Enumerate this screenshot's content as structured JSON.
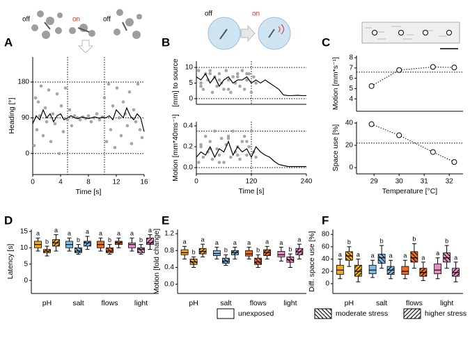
{
  "panels": [
    "A",
    "B",
    "C",
    "D",
    "E",
    "F"
  ],
  "icon_labels": [
    "off",
    "on",
    "off",
    "off",
    "on"
  ],
  "legend": [
    {
      "name": "unexposed",
      "hatch": "none"
    },
    {
      "name": "moderate stress",
      "hatch": "back"
    },
    {
      "name": "higher stress",
      "hatch": "forward"
    }
  ],
  "chart_data": [
    {
      "type": "scatter",
      "ylabel": "Heading [°]",
      "xlabel": "Time [s]",
      "xlim": [
        0,
        16
      ],
      "xticks": [
        0,
        4,
        8,
        12,
        16
      ],
      "ylim": [
        -53,
        243
      ],
      "yticks": [
        0,
        90,
        180
      ],
      "hlines": [
        0,
        90,
        180
      ],
      "vlines": [
        5,
        10.3
      ],
      "series": [
        {
          "type": "scatter",
          "color": "#a6a6a6",
          "x": [
            0.2,
            0.4,
            0.6,
            0.8,
            1.0,
            1.2,
            1.5,
            1.8,
            2.0,
            2.3,
            2.6,
            2.9,
            3.2,
            3.5,
            3.8,
            4.1,
            4.4,
            4.7,
            5.0,
            5.3,
            5.6,
            6.0,
            6.4,
            6.8,
            7.2,
            7.6,
            8.0,
            8.4,
            8.8,
            9.2,
            9.6,
            10.0,
            10.3,
            10.6,
            10.9,
            11.2,
            11.5,
            11.8,
            12.1,
            12.4,
            12.7,
            13.0,
            13.3,
            13.6,
            13.9,
            14.2,
            14.5,
            14.8,
            15.1,
            15.4,
            15.7
          ],
          "values": [
            20,
            140,
            60,
            130,
            95,
            170,
            45,
            115,
            80,
            160,
            30,
            100,
            75,
            150,
            0,
            120,
            55,
            165,
            85,
            110,
            70,
            95,
            90,
            85,
            92,
            88,
            95,
            80,
            90,
            100,
            85,
            92,
            140,
            30,
            175,
            60,
            120,
            15,
            165,
            90,
            45,
            130,
            100,
            70,
            155,
            25,
            110,
            80,
            175,
            60,
            40
          ]
        },
        {
          "type": "line",
          "color": "#000000",
          "x": [
            0,
            0.5,
            1,
            1.5,
            2,
            2.5,
            3,
            3.5,
            4,
            4.5,
            5,
            5.5,
            6,
            6.5,
            7,
            7.5,
            8,
            8.5,
            9,
            9.5,
            10,
            10.5,
            11,
            11.5,
            12,
            12.5,
            13,
            13.5,
            14,
            14.5,
            15,
            15.5,
            16
          ],
          "values": [
            75,
            95,
            85,
            110,
            90,
            100,
            80,
            95,
            100,
            85,
            90,
            95,
            90,
            88,
            92,
            90,
            88,
            90,
            92,
            89,
            91,
            90,
            95,
            85,
            110,
            100,
            90,
            115,
            95,
            85,
            100,
            90,
            55
          ]
        }
      ]
    },
    {
      "type": "scatter",
      "ylabel": "[mm] to source",
      "xlim": [
        0,
        240
      ],
      "ylim": [
        -1.8,
        12
      ],
      "yticks": [
        0,
        5,
        10
      ],
      "hlines": [
        0,
        10
      ],
      "vlines": [
        120
      ],
      "series": [
        {
          "type": "scatter",
          "color": "#a6a6a6",
          "x": [
            5,
            10,
            15,
            20,
            25,
            30,
            35,
            40,
            45,
            50,
            55,
            60,
            65,
            70,
            75,
            80,
            85,
            90,
            95,
            100,
            105,
            110,
            115,
            120,
            125,
            130,
            10,
            30,
            50,
            70,
            90,
            110
          ],
          "values": [
            9,
            5,
            3,
            8,
            6,
            9,
            2,
            7,
            4,
            8,
            5,
            3,
            9,
            6,
            2,
            7,
            5,
            8,
            4,
            9,
            3,
            6,
            8,
            2,
            7,
            5,
            4,
            8,
            6,
            3,
            7,
            8
          ]
        },
        {
          "type": "line",
          "color": "#000000",
          "x": [
            0,
            10,
            20,
            30,
            40,
            50,
            60,
            70,
            80,
            90,
            100,
            110,
            120,
            130,
            140,
            150,
            160,
            170,
            180,
            190,
            200,
            210,
            220,
            230,
            240
          ],
          "values": [
            7,
            6,
            8,
            5,
            7,
            4,
            6,
            7,
            5,
            6,
            6,
            7,
            5,
            6,
            5,
            6,
            5,
            4,
            3,
            1.2,
            1,
            1,
            1.1,
            1,
            1
          ]
        }
      ]
    },
    {
      "type": "scatter",
      "ylabel": "Motion [mm*40ms⁻¹]",
      "xlabel": "Time [s]",
      "xlim": [
        0,
        240
      ],
      "xticks": [
        0,
        120,
        240
      ],
      "ylim": [
        -0.06,
        0.44
      ],
      "yticks": [
        {
          "value": 0,
          "label": "0.0"
        },
        0.2,
        0.4
      ],
      "hlines": [
        0,
        0.35
      ],
      "vlines": [
        120
      ],
      "series": [
        {
          "type": "scatter",
          "color": "#a6a6a6",
          "x": [
            5,
            10,
            15,
            20,
            25,
            30,
            35,
            40,
            45,
            50,
            55,
            60,
            65,
            70,
            75,
            80,
            85,
            90,
            95,
            100,
            105,
            110,
            115,
            120,
            125,
            130,
            10,
            30,
            50,
            70,
            90,
            110
          ],
          "values": [
            0.05,
            0.2,
            0.1,
            0.3,
            0.15,
            0.25,
            0.08,
            0.35,
            0.18,
            0.12,
            0.28,
            0.05,
            0.22,
            0.3,
            0.1,
            0.35,
            0.15,
            0.2,
            0.08,
            0.25,
            0.3,
            0.12,
            0.2,
            0.35,
            0.15,
            0.1,
            0.22,
            0.18,
            0.05,
            0.28,
            0.12,
            0.25
          ]
        },
        {
          "type": "line",
          "color": "#000000",
          "x": [
            0,
            10,
            20,
            30,
            40,
            50,
            60,
            70,
            80,
            90,
            100,
            110,
            120,
            130,
            140,
            150,
            160,
            170,
            180,
            190,
            200,
            210,
            220,
            230,
            240
          ],
          "values": [
            0.1,
            0.15,
            0.12,
            0.2,
            0.1,
            0.18,
            0.15,
            0.25,
            0.12,
            0.2,
            0.15,
            0.18,
            0.1,
            0.2,
            0.15,
            0.12,
            0.1,
            0.06,
            0.03,
            0.02,
            0.01,
            0.01,
            0.01,
            0.01,
            0.01
          ]
        }
      ]
    },
    {
      "type": "line",
      "ylabel": "Motion [mm*s⁻¹]",
      "xlim": [
        28.3,
        32.55
      ],
      "ylim": [
        2.8,
        8.2
      ],
      "yticks": [
        4,
        5,
        6,
        7,
        8
      ],
      "hlines": [
        6.6
      ],
      "series": [
        {
          "type": "line",
          "color": "#000000",
          "dashed": true,
          "markers": true,
          "x": [
            28.9,
            30,
            31.35,
            32.2
          ],
          "values": [
            5.25,
            6.8,
            7.1,
            7.05
          ]
        }
      ]
    },
    {
      "type": "line",
      "ylabel": "Space use [%]",
      "xlabel": "Temperature [°C]",
      "xlim": [
        28.3,
        32.55
      ],
      "xticks": [
        29,
        30,
        31,
        32
      ],
      "ylim": [
        -5.6,
        41.2
      ],
      "yticks": [
        0,
        20,
        40
      ],
      "hlines": [
        22
      ],
      "series": [
        {
          "type": "line",
          "color": "#000000",
          "dashed": true,
          "markers": true,
          "x": [
            28.9,
            30,
            31.35,
            32.2
          ],
          "values": [
            39,
            29,
            14,
            5
          ]
        }
      ]
    },
    {
      "type": "box",
      "ylabel": "Latency [s]",
      "categories": [
        "pH",
        "salt",
        "flows",
        "light"
      ],
      "colors": [
        "#f2a81d",
        "#78bde6",
        "#f26b22",
        "#ea8cc4"
      ],
      "ylim": [
        -4,
        15.6
      ],
      "yticks": [
        0,
        5,
        10,
        15
      ],
      "series": [
        {
          "boxes": [
            [
              9,
              10,
              11,
              12,
              13
            ],
            [
              9,
              10,
              11,
              12,
              13
            ],
            [
              9,
              10,
              11,
              12,
              13
            ],
            [
              9,
              10,
              11,
              11.5,
              13
            ]
          ],
          "letters": [
            "a",
            "a",
            "a",
            "a"
          ]
        },
        {
          "boxes": [
            [
              7.5,
              8.5,
              9,
              9.5,
              10.5
            ],
            [
              8,
              8.5,
              9,
              10,
              11
            ],
            [
              8,
              8.5,
              9,
              10,
              11
            ],
            [
              8,
              8.5,
              9.5,
              10,
              11
            ]
          ],
          "letters": [
            "b",
            "b",
            "b",
            "b"
          ]
        },
        {
          "boxes": [
            [
              9,
              10.5,
              11.5,
              12.5,
              14
            ],
            [
              9.5,
              10.5,
              11.5,
              12,
              13.5
            ],
            [
              10,
              11,
              11.5,
              12,
              13
            ],
            [
              9.5,
              11,
              11.5,
              13,
              14
            ]
          ],
          "letters": [
            "a",
            "a",
            "a",
            "a"
          ]
        }
      ]
    },
    {
      "type": "box",
      "ylabel": "Motion [fold change]",
      "categories": [
        "pH",
        "salt",
        "flows",
        "light"
      ],
      "colors": [
        "#f2a81d",
        "#78bde6",
        "#f26b22",
        "#ea8cc4"
      ],
      "ylim": [
        -0.22,
        1.3
      ],
      "yticks": [
        {
          "value": 0,
          "label": "0.0"
        },
        0.4,
        0.8,
        1.2
      ],
      "series": [
        {
          "boxes": [
            [
              0.6,
              0.7,
              0.75,
              0.82,
              0.9
            ],
            [
              0.6,
              0.68,
              0.73,
              0.8,
              0.88
            ],
            [
              0.6,
              0.67,
              0.72,
              0.8,
              0.88
            ],
            [
              0.55,
              0.65,
              0.7,
              0.78,
              0.88
            ]
          ],
          "letters": [
            "a",
            "a",
            "a",
            "a"
          ]
        },
        {
          "boxes": [
            [
              0.4,
              0.47,
              0.53,
              0.6,
              0.65
            ],
            [
              0.45,
              0.5,
              0.55,
              0.62,
              0.7
            ],
            [
              0.4,
              0.47,
              0.53,
              0.62,
              0.7
            ],
            [
              0.4,
              0.52,
              0.58,
              0.65,
              0.72
            ]
          ],
          "letters": [
            "b",
            "b",
            "b",
            "b"
          ]
        },
        {
          "boxes": [
            [
              0.65,
              0.72,
              0.78,
              0.85,
              0.95
            ],
            [
              0.6,
              0.7,
              0.75,
              0.8,
              0.88
            ],
            [
              0.6,
              0.68,
              0.75,
              0.82,
              0.9
            ],
            [
              0.6,
              0.7,
              0.77,
              0.85,
              0.95
            ]
          ],
          "letters": [
            "a",
            "a",
            "a",
            "a"
          ]
        }
      ]
    },
    {
      "type": "box",
      "ylabel": "Diff. space use [%]",
      "categories": [
        "pH",
        "salt",
        "flows",
        "light"
      ],
      "colors": [
        "#f2a81d",
        "#78bde6",
        "#f26b22",
        "#ea8cc4"
      ],
      "ylim": [
        -16,
        88
      ],
      "yticks": [
        0,
        20,
        40,
        60,
        80
      ],
      "series": [
        {
          "boxes": [
            [
              8,
              15,
              22,
              30,
              40
            ],
            [
              10,
              16,
              22,
              30,
              38
            ],
            [
              8,
              15,
              20,
              28,
              38
            ],
            [
              8,
              16,
              22,
              32,
              42
            ]
          ],
          "letters": [
            "a",
            "a",
            "a",
            "a"
          ]
        },
        {
          "boxes": [
            [
              28,
              38,
              45,
              52,
              60
            ],
            [
              25,
              33,
              42,
              48,
              62
            ],
            [
              25,
              35,
              42,
              52,
              65
            ],
            [
              25,
              35,
              42,
              50,
              62
            ]
          ],
          "letters": [
            "b",
            "b",
            "b",
            "b"
          ]
        },
        {
          "boxes": [
            [
              3,
              12,
              20,
              30,
              40
            ],
            [
              8,
              15,
              22,
              28,
              38
            ],
            [
              5,
              12,
              18,
              25,
              35
            ],
            [
              3,
              12,
              18,
              25,
              35
            ]
          ],
          "letters": [
            "a",
            "a",
            "a",
            "a"
          ]
        }
      ]
    }
  ]
}
